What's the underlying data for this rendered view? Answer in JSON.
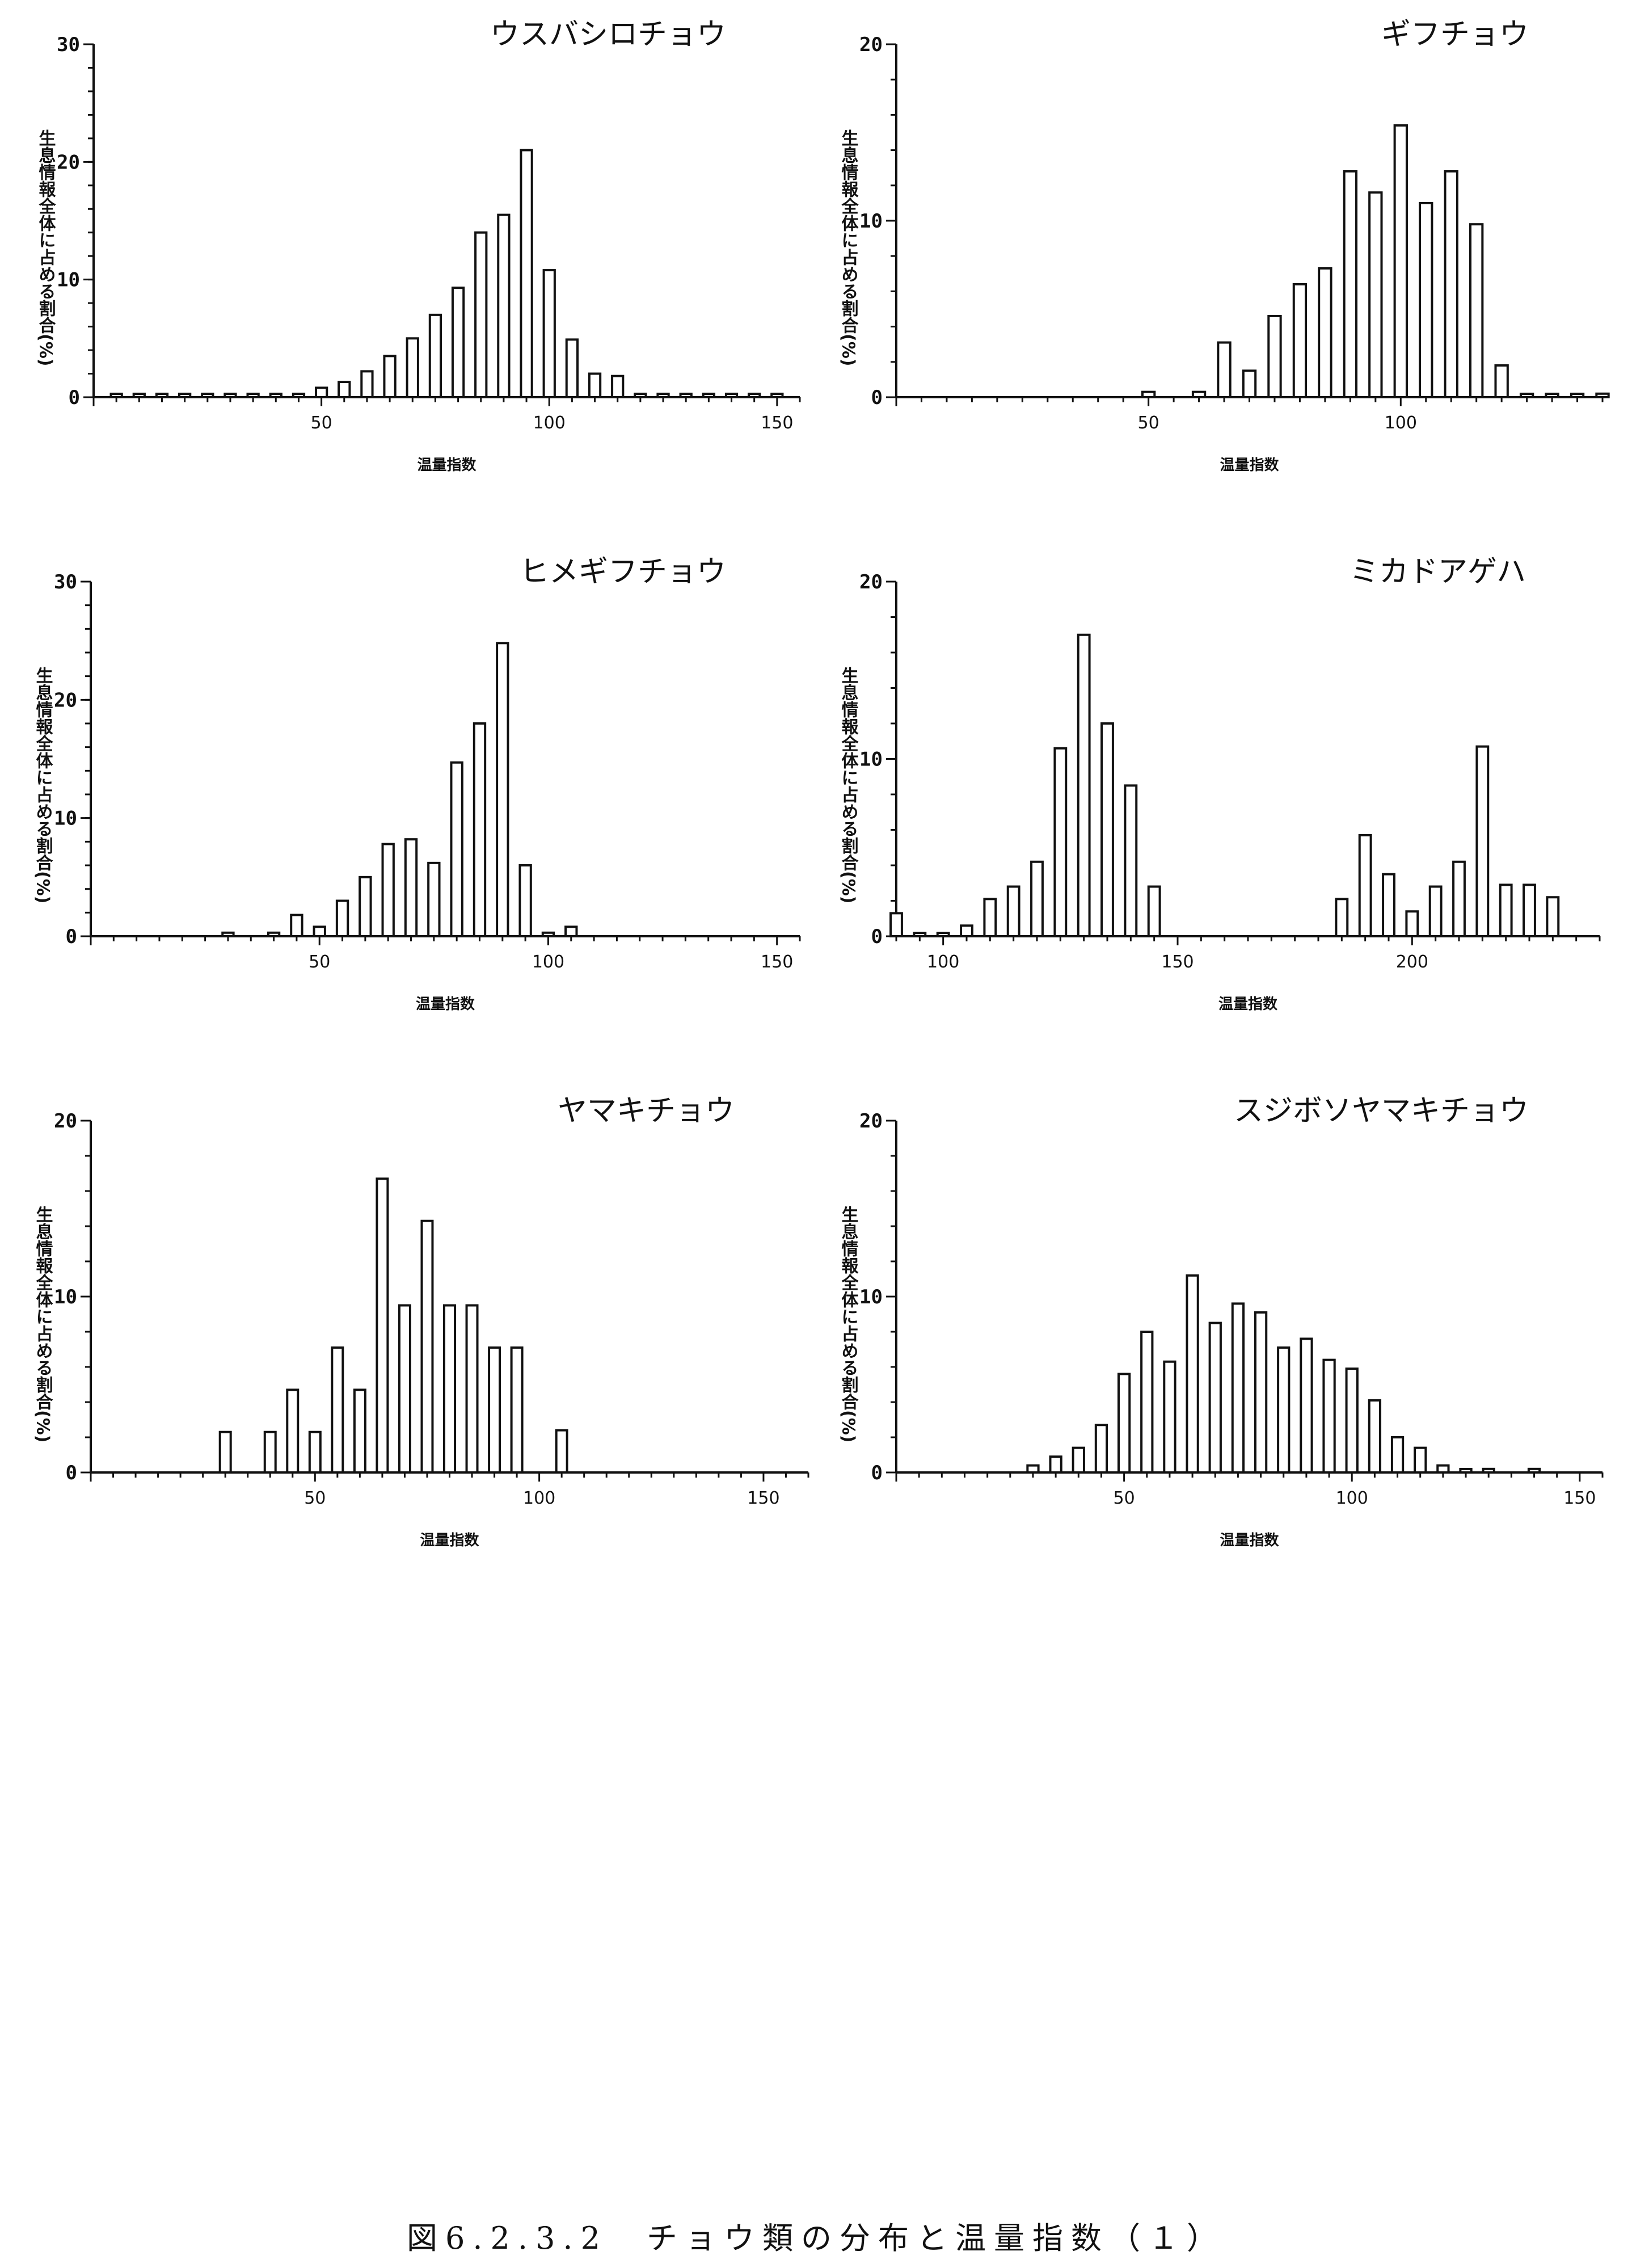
{
  "caption": "図6.2.3.2　チョウ類の分布と温量指数（１）",
  "chart_data": [
    {
      "type": "bar",
      "title": "ウスバシロチョウ",
      "xlabel": "温量指数",
      "ylabel": "生息情報全体に占める割合(%)",
      "xlim": [
        0,
        155
      ],
      "ylim": [
        0,
        30
      ],
      "xticks": [
        50,
        100,
        150
      ],
      "yticks": [
        0,
        10,
        20,
        30
      ],
      "x": [
        5,
        10,
        15,
        20,
        25,
        30,
        35,
        40,
        45,
        50,
        55,
        60,
        65,
        70,
        75,
        80,
        85,
        90,
        95,
        100,
        105,
        110,
        115,
        120,
        125,
        130,
        135,
        140,
        145,
        150
      ],
      "values": [
        0,
        0,
        0,
        0,
        0,
        0,
        0,
        0.2,
        0.2,
        0.8,
        1.3,
        2.2,
        3.5,
        5,
        7,
        9.3,
        14,
        15.5,
        21,
        10.8,
        4.9,
        2,
        1.8,
        0.2,
        0.2,
        0,
        0,
        0.2,
        0,
        0
      ]
    },
    {
      "type": "bar",
      "title": "ギフチョウ",
      "xlabel": "温量指数",
      "ylabel": "生息情報全体に占める割合(%)",
      "xlim": [
        0,
        140
      ],
      "ylim": [
        0,
        20
      ],
      "xticks": [
        50,
        100
      ],
      "yticks": [
        0,
        10,
        20
      ],
      "x": [
        50,
        60,
        65,
        70,
        75,
        80,
        85,
        90,
        95,
        100,
        105,
        110,
        115,
        120,
        125,
        130,
        135,
        140
      ],
      "values": [
        0.3,
        0.3,
        3.1,
        1.5,
        4.6,
        6.4,
        7.3,
        12.8,
        11.6,
        15.4,
        11,
        12.8,
        9.8,
        1.8,
        0,
        0,
        0,
        0.2
      ]
    },
    {
      "type": "bar",
      "title": "ヒメギフチョウ",
      "xlabel": "温量指数",
      "ylabel": "生息情報全体に占める割合(%)",
      "xlim": [
        0,
        155
      ],
      "ylim": [
        0,
        30
      ],
      "xticks": [
        50,
        100,
        150
      ],
      "yticks": [
        0,
        10,
        20,
        30
      ],
      "x": [
        30,
        40,
        45,
        50,
        55,
        60,
        65,
        70,
        75,
        80,
        85,
        90,
        95,
        100,
        105
      ],
      "values": [
        0.3,
        0.3,
        1.8,
        0.8,
        3,
        5,
        7.8,
        8.2,
        6.2,
        14.7,
        18,
        24.8,
        6,
        0.3,
        0.8
      ]
    },
    {
      "type": "bar",
      "title": "ミカドアゲハ",
      "xlabel": "温量指数",
      "ylabel": "生息情報全体に占める割合(%)",
      "xlim": [
        90,
        240
      ],
      "ylim": [
        0,
        20
      ],
      "xticks": [
        100,
        150,
        200
      ],
      "yticks": [
        0,
        10,
        20
      ],
      "x": [
        90,
        95,
        100,
        105,
        110,
        115,
        120,
        125,
        130,
        135,
        140,
        145,
        185,
        190,
        195,
        200,
        205,
        210,
        215,
        220,
        225,
        230
      ],
      "values": [
        1.3,
        0,
        0,
        0.6,
        2.1,
        2.8,
        4.2,
        10.6,
        17,
        12,
        8.5,
        2.8,
        2.1,
        5.7,
        3.5,
        1.4,
        2.8,
        4.2,
        10.7,
        2.9,
        2.9,
        2.2
      ]
    },
    {
      "type": "bar",
      "title": "ヤマキチョウ",
      "xlabel": "温量指数",
      "ylabel": "生息情報全体に占める割合(%)",
      "xlim": [
        0,
        160
      ],
      "ylim": [
        0,
        20
      ],
      "xticks": [
        50,
        100,
        150
      ],
      "yticks": [
        0,
        10,
        20
      ],
      "x": [
        30,
        40,
        45,
        50,
        55,
        60,
        65,
        70,
        75,
        80,
        85,
        90,
        95,
        105
      ],
      "values": [
        2.3,
        2.3,
        4.7,
        2.3,
        7.1,
        4.7,
        16.7,
        9.5,
        14.3,
        9.5,
        9.5,
        7.1,
        7.1,
        2.4
      ]
    },
    {
      "type": "bar",
      "title": "スジボソヤマキチョウ",
      "xlabel": "温量指数",
      "ylabel": "生息情報全体に占める割合(%)",
      "xlim": [
        0,
        155
      ],
      "ylim": [
        0,
        20
      ],
      "xticks": [
        50,
        100,
        150
      ],
      "yticks": [
        0,
        10,
        20
      ],
      "x": [
        30,
        35,
        40,
        45,
        50,
        55,
        60,
        65,
        70,
        75,
        80,
        85,
        90,
        95,
        100,
        105,
        110,
        115,
        120,
        125,
        130,
        140
      ],
      "values": [
        0.4,
        0.9,
        1.4,
        2.7,
        5.6,
        8,
        6.3,
        11.2,
        8.5,
        9.6,
        9.1,
        7.1,
        7.6,
        6.4,
        5.9,
        4.1,
        2,
        1.4,
        0.4,
        0,
        0.2,
        0.2
      ]
    }
  ]
}
